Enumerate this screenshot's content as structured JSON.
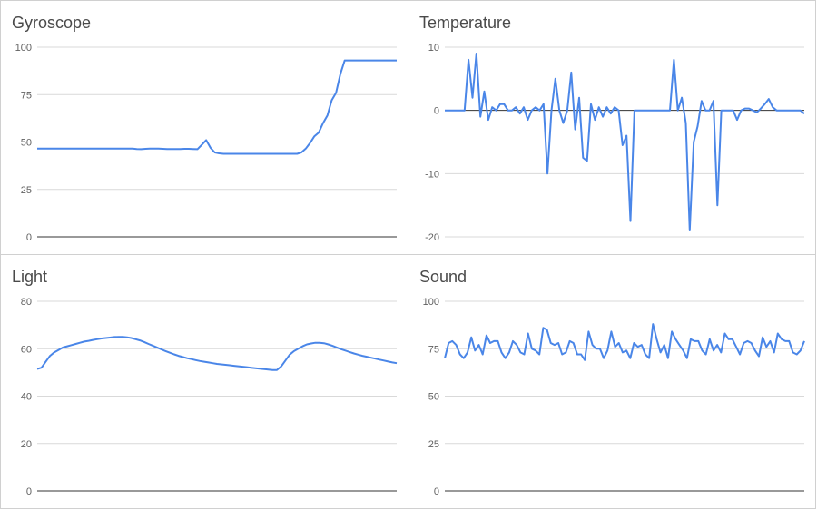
{
  "charts": [
    {
      "title": "Gyroscope",
      "chart_data": {
        "type": "line",
        "ylim": [
          0,
          100
        ],
        "yticks": [
          0,
          25,
          50,
          75,
          100
        ],
        "grid": true,
        "series": [
          {
            "color": "#4a86e8",
            "values": [
              46.5,
              46.5,
              46.5,
              46.5,
              46.5,
              46.5,
              46.5,
              46.5,
              46.5,
              46.5,
              46.5,
              46.5,
              46.5,
              46.5,
              46.5,
              46.5,
              46.5,
              46.5,
              46.5,
              46.5,
              46.5,
              46.5,
              46.5,
              46.3,
              46.2,
              46.4,
              46.5,
              46.5,
              46.5,
              46.4,
              46.3,
              46.3,
              46.3,
              46.3,
              46.4,
              46.4,
              46.3,
              46.2,
              48.5,
              51,
              47,
              44.5,
              44,
              43.8,
              43.8,
              43.8,
              43.8,
              43.8,
              43.8,
              43.8,
              43.8,
              43.8,
              43.8,
              43.8,
              43.8,
              43.8,
              43.8,
              43.8,
              43.8,
              43.8,
              43.8,
              44.5,
              46.5,
              49.5,
              53,
              55,
              60,
              64,
              72,
              76,
              86,
              93,
              93,
              93,
              93,
              93,
              93,
              93,
              93,
              93,
              93,
              93,
              93,
              93
            ]
          }
        ]
      }
    },
    {
      "title": "Temperature",
      "chart_data": {
        "type": "line",
        "ylim": [
          -20,
          10
        ],
        "yticks": [
          -20,
          -10,
          0,
          10
        ],
        "grid": true,
        "series": [
          {
            "color": "#4a86e8",
            "values": [
              0,
              0,
              0,
              0,
              0,
              0,
              8,
              2,
              9,
              -1,
              3,
              -1.5,
              0.5,
              0,
              1,
              1,
              0,
              0,
              0.5,
              -0.5,
              0.5,
              -1.5,
              0,
              0.5,
              0,
              1,
              -10,
              0,
              5,
              0,
              -2,
              0,
              6,
              -3,
              2,
              -7.5,
              -8,
              1,
              -1.5,
              0.5,
              -1,
              0.5,
              -0.5,
              0.5,
              0,
              -5.5,
              -4,
              -17.5,
              0,
              0,
              0,
              0,
              0,
              0,
              0,
              0,
              0,
              0,
              8,
              0,
              2,
              -2,
              -19,
              -5,
              -2.5,
              1.5,
              0,
              0,
              1.5,
              -15,
              0,
              0,
              0,
              0,
              -1.5,
              0,
              0.3,
              0.3,
              0,
              -0.3,
              0.3,
              1,
              1.8,
              0.5,
              0,
              0,
              0,
              0,
              0,
              0,
              0,
              -0.5
            ]
          }
        ]
      }
    },
    {
      "title": "Light",
      "chart_data": {
        "type": "line",
        "ylim": [
          0,
          80
        ],
        "yticks": [
          0,
          20,
          40,
          60,
          80
        ],
        "grid": true,
        "series": [
          {
            "color": "#4a86e8",
            "values": [
              51.5,
              52,
              54.5,
              57,
              58.5,
              59.5,
              60.5,
              61,
              61.5,
              62,
              62.5,
              63,
              63.3,
              63.7,
              64,
              64.3,
              64.5,
              64.7,
              64.9,
              65,
              65,
              64.8,
              64.5,
              64,
              63.5,
              62.8,
              62,
              61.3,
              60.5,
              59.7,
              59,
              58.3,
              57.6,
              57,
              56.5,
              56,
              55.6,
              55.2,
              54.8,
              54.5,
              54.2,
              53.9,
              53.6,
              53.4,
              53.2,
              53,
              52.8,
              52.6,
              52.4,
              52.2,
              52,
              51.8,
              51.6,
              51.4,
              51.2,
              51,
              51,
              52.5,
              55,
              57.5,
              59,
              60,
              61,
              61.8,
              62.2,
              62.5,
              62.5,
              62.3,
              61.8,
              61.2,
              60.5,
              59.8,
              59.2,
              58.6,
              58,
              57.5,
              57,
              56.6,
              56.2,
              55.8,
              55.4,
              55,
              54.6,
              54.2,
              53.9
            ]
          }
        ]
      }
    },
    {
      "title": "Sound",
      "chart_data": {
        "type": "line",
        "ylim": [
          0,
          100
        ],
        "yticks": [
          0,
          25,
          50,
          75,
          100
        ],
        "grid": true,
        "series": [
          {
            "color": "#4a86e8",
            "values": [
              70,
              78,
              79,
              77,
              72,
              70,
              73,
              81,
              74,
              77,
              72,
              82,
              78,
              79,
              79,
              73,
              70,
              73,
              79,
              77,
              73,
              72,
              83,
              75,
              74,
              72,
              86,
              85,
              78,
              77,
              78,
              72,
              73,
              79,
              78,
              72,
              72,
              69,
              84,
              77,
              75,
              75,
              70,
              74,
              84,
              76,
              78,
              73,
              74,
              70,
              78,
              76,
              77,
              72,
              70,
              88,
              80,
              73,
              77,
              70,
              84,
              80,
              77,
              74,
              70,
              80,
              79,
              79,
              74,
              72,
              80,
              74,
              77,
              73,
              83,
              80,
              80,
              76,
              72,
              78,
              79,
              78,
              74,
              71,
              81,
              76,
              79,
              73,
              83,
              80,
              79,
              79,
              73,
              72,
              74,
              79
            ]
          }
        ]
      }
    }
  ]
}
